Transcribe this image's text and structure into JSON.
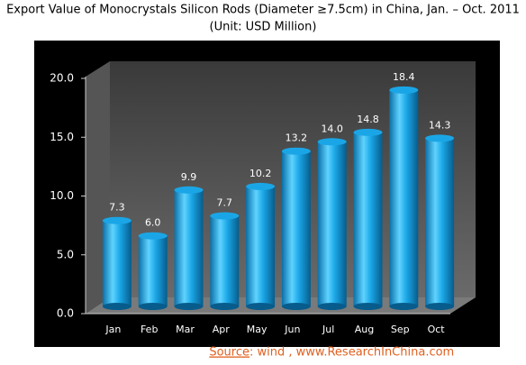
{
  "chart_data": {
    "type": "bar",
    "title": "Export Value of Monocrystals Silicon Rods (Diameter ≥7.5cm) in China, Jan. – Oct. 2011",
    "subtitle": "(Unit: USD Million)",
    "categories": [
      "Jan",
      "Feb",
      "Mar",
      "Apr",
      "May",
      "Jun",
      "Jul",
      "Aug",
      "Sep",
      "Oct"
    ],
    "values": [
      7.3,
      6.0,
      9.9,
      7.7,
      10.2,
      13.2,
      14.0,
      14.8,
      18.4,
      14.3
    ],
    "value_labels": [
      "7.3",
      "6.0",
      "9.9",
      "7.7",
      "10.2",
      "13.2",
      "14.0",
      "14.8",
      "18.4",
      "14.3"
    ],
    "color": "#1aa6e6",
    "ylim": [
      0,
      20
    ],
    "yticks": [
      {
        "value": 0,
        "label": "0.0"
      },
      {
        "value": 5,
        "label": "5.0"
      },
      {
        "value": 10,
        "label": "10.0"
      },
      {
        "value": 15,
        "label": "15.0"
      },
      {
        "value": 20,
        "label": "20.0"
      }
    ],
    "source": {
      "label": "Source",
      "text": ": wind , www.ResearchInChina.com"
    }
  }
}
